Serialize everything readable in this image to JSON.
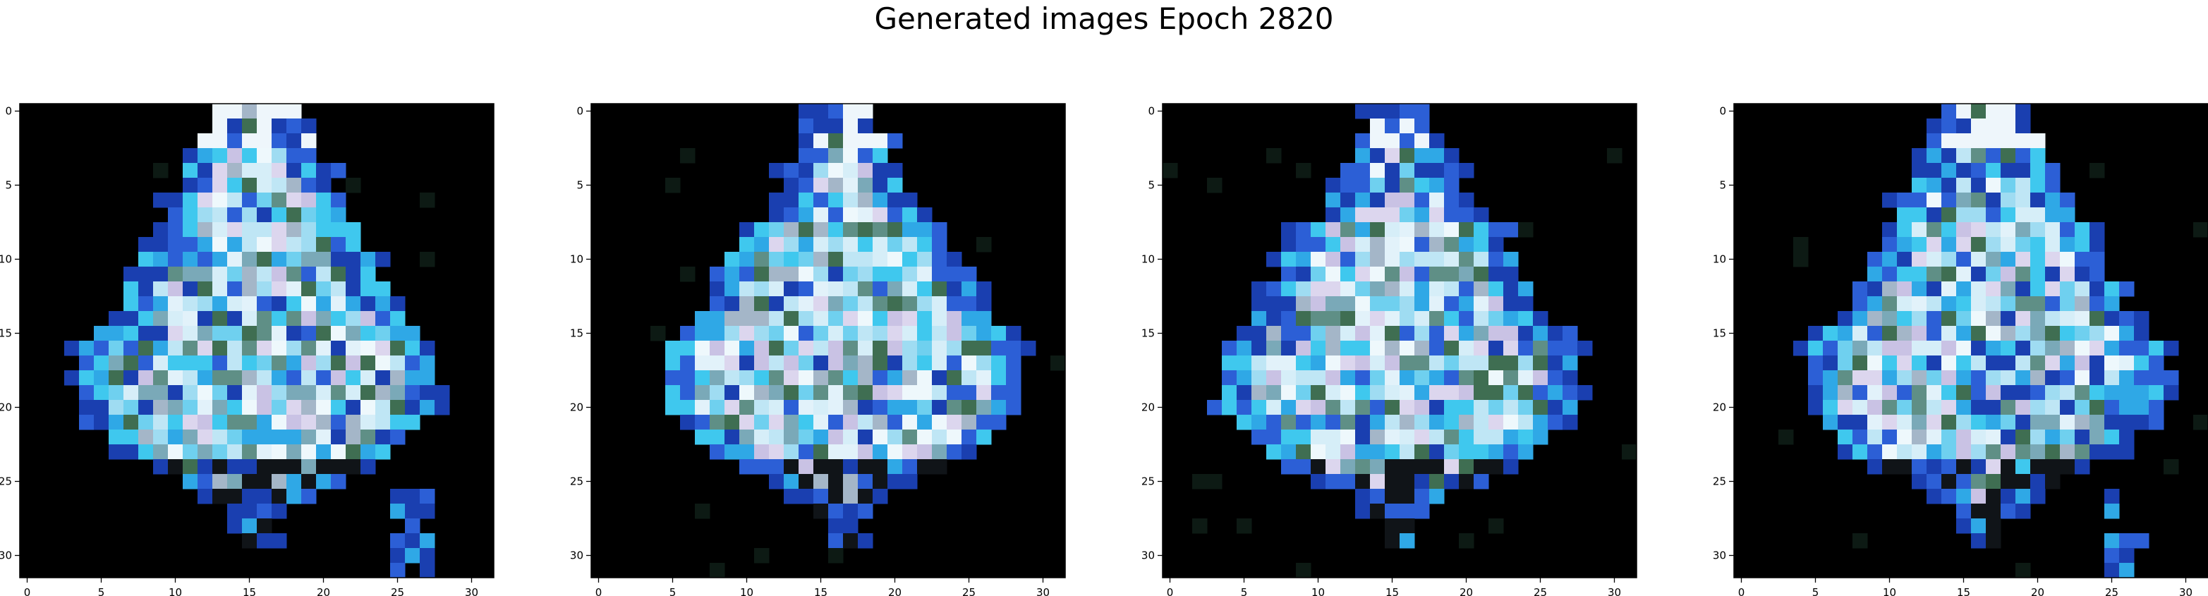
{
  "title": "Generated images Epoch 2820",
  "panels": [
    {
      "name": "generated-image-1"
    },
    {
      "name": "generated-image-2"
    },
    {
      "name": "generated-image-3"
    },
    {
      "name": "generated-image-4"
    }
  ],
  "image_size": 32,
  "x_ticks": [
    0,
    5,
    10,
    15,
    20,
    25,
    30
  ],
  "y_ticks": [
    0,
    5,
    10,
    15,
    20,
    25,
    30
  ],
  "colors": {
    "background": "#000000",
    "palette_light": "#e6f4fb",
    "palette_cyan": "#3fc8ee",
    "palette_blue": "#2c5fd6",
    "palette_green": "#3f6e52"
  }
}
